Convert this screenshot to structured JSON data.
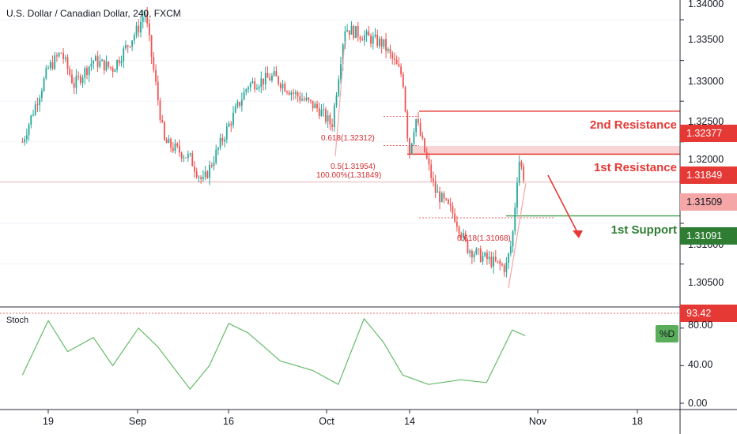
{
  "header": {
    "title": "U.S. Dollar / Canadian Dollar, 240, FXCM"
  },
  "price_axis": {
    "labels": [
      "1.34000",
      "1.33500",
      "1.33000",
      "1.32500",
      "1.32000",
      "1.31500",
      "1.31000",
      "1.30500"
    ]
  },
  "time_axis": {
    "labels": [
      "19",
      "Sep",
      "16",
      "Oct",
      "14",
      "Nov",
      "18"
    ]
  },
  "price_tags": {
    "second_resistance": "1.32377",
    "first_resistance": "1.31849",
    "current": "1.31509",
    "first_support": "1.31091"
  },
  "levels": {
    "second_resistance_label": "2nd Resistance",
    "first_resistance_label": "1st Resistance",
    "first_support_label": "1st Support"
  },
  "fib_labels": {
    "f618_top": "0.618(1.32312)",
    "f05": "0.5(1.31954)",
    "f100": "100.00%(1.31849)",
    "f618_low": "0.618(1.31068)"
  },
  "stoch": {
    "label": "Stoch",
    "d_label": "%D",
    "tag_value": "93.42",
    "axis_labels": [
      "80.00",
      "40.00",
      "0.00"
    ]
  },
  "colors": {
    "up": "#26a69a",
    "down": "#ef5350",
    "resistance": "#e53935",
    "support": "#43a047",
    "stoch_line": "#66bb6a",
    "current_tag": "#f06c6c"
  },
  "chart_data": {
    "type": "candlestick",
    "title": "U.S. Dollar / Canadian Dollar, 240, FXCM",
    "ylim": [
      1.3035,
      1.3405
    ],
    "x_ticks": [
      "19",
      "Sep",
      "16",
      "Oct",
      "14",
      "Nov",
      "18"
    ],
    "close_path": [
      [
        "2019-08-15",
        1.32
      ],
      [
        "2019-08-19",
        1.329
      ],
      [
        "2019-08-21",
        1.331
      ],
      [
        "2019-08-23",
        1.327
      ],
      [
        "2019-08-26",
        1.33
      ],
      [
        "2019-08-29",
        1.329
      ],
      [
        "2019-09-02",
        1.334
      ],
      [
        "2019-09-03",
        1.336
      ],
      [
        "2019-09-06",
        1.32
      ],
      [
        "2019-09-10",
        1.318
      ],
      [
        "2019-09-12",
        1.315
      ],
      [
        "2019-09-16",
        1.322
      ],
      [
        "2019-09-19",
        1.327
      ],
      [
        "2019-09-23",
        1.328
      ],
      [
        "2019-09-26",
        1.326
      ],
      [
        "2019-09-30",
        1.324
      ],
      [
        "2019-10-02",
        1.322
      ],
      [
        "2019-10-04",
        1.334
      ],
      [
        "2019-10-07",
        1.333
      ],
      [
        "2019-10-10",
        1.332
      ],
      [
        "2019-10-13",
        1.328
      ],
      [
        "2019-10-14",
        1.3185
      ],
      [
        "2019-10-15",
        1.323
      ],
      [
        "2019-10-16",
        1.32
      ],
      [
        "2019-10-18",
        1.314
      ],
      [
        "2019-10-21",
        1.311
      ],
      [
        "2019-10-23",
        1.307
      ],
      [
        "2019-10-25",
        1.306
      ],
      [
        "2019-10-29",
        1.3045
      ],
      [
        "2019-10-30",
        1.308
      ],
      [
        "2019-10-31",
        1.318
      ],
      [
        "2019-11-01",
        1.3151
      ]
    ],
    "levels": [
      {
        "name": "2nd Resistance",
        "value": 1.32377
      },
      {
        "name": "1st Resistance",
        "value": 1.31849
      },
      {
        "name": "1st Support",
        "value": 1.31091
      }
    ],
    "current_price": 1.31509,
    "stochastic": {
      "ylim": [
        0,
        100
      ],
      "latest_value": 93.42,
      "d_path": [
        [
          "2019-08-15",
          30
        ],
        [
          "2019-08-19",
          88
        ],
        [
          "2019-08-22",
          55
        ],
        [
          "2019-08-26",
          70
        ],
        [
          "2019-08-29",
          40
        ],
        [
          "2019-09-02",
          80
        ],
        [
          "2019-09-05",
          60
        ],
        [
          "2019-09-10",
          15
        ],
        [
          "2019-09-13",
          40
        ],
        [
          "2019-09-16",
          85
        ],
        [
          "2019-09-19",
          75
        ],
        [
          "2019-09-24",
          45
        ],
        [
          "2019-09-29",
          35
        ],
        [
          "2019-10-03",
          20
        ],
        [
          "2019-10-07",
          90
        ],
        [
          "2019-10-10",
          65
        ],
        [
          "2019-10-13",
          30
        ],
        [
          "2019-10-17",
          20
        ],
        [
          "2019-10-22",
          25
        ],
        [
          "2019-10-26",
          22
        ],
        [
          "2019-10-30",
          78
        ],
        [
          "2019-11-01",
          72
        ]
      ]
    }
  }
}
